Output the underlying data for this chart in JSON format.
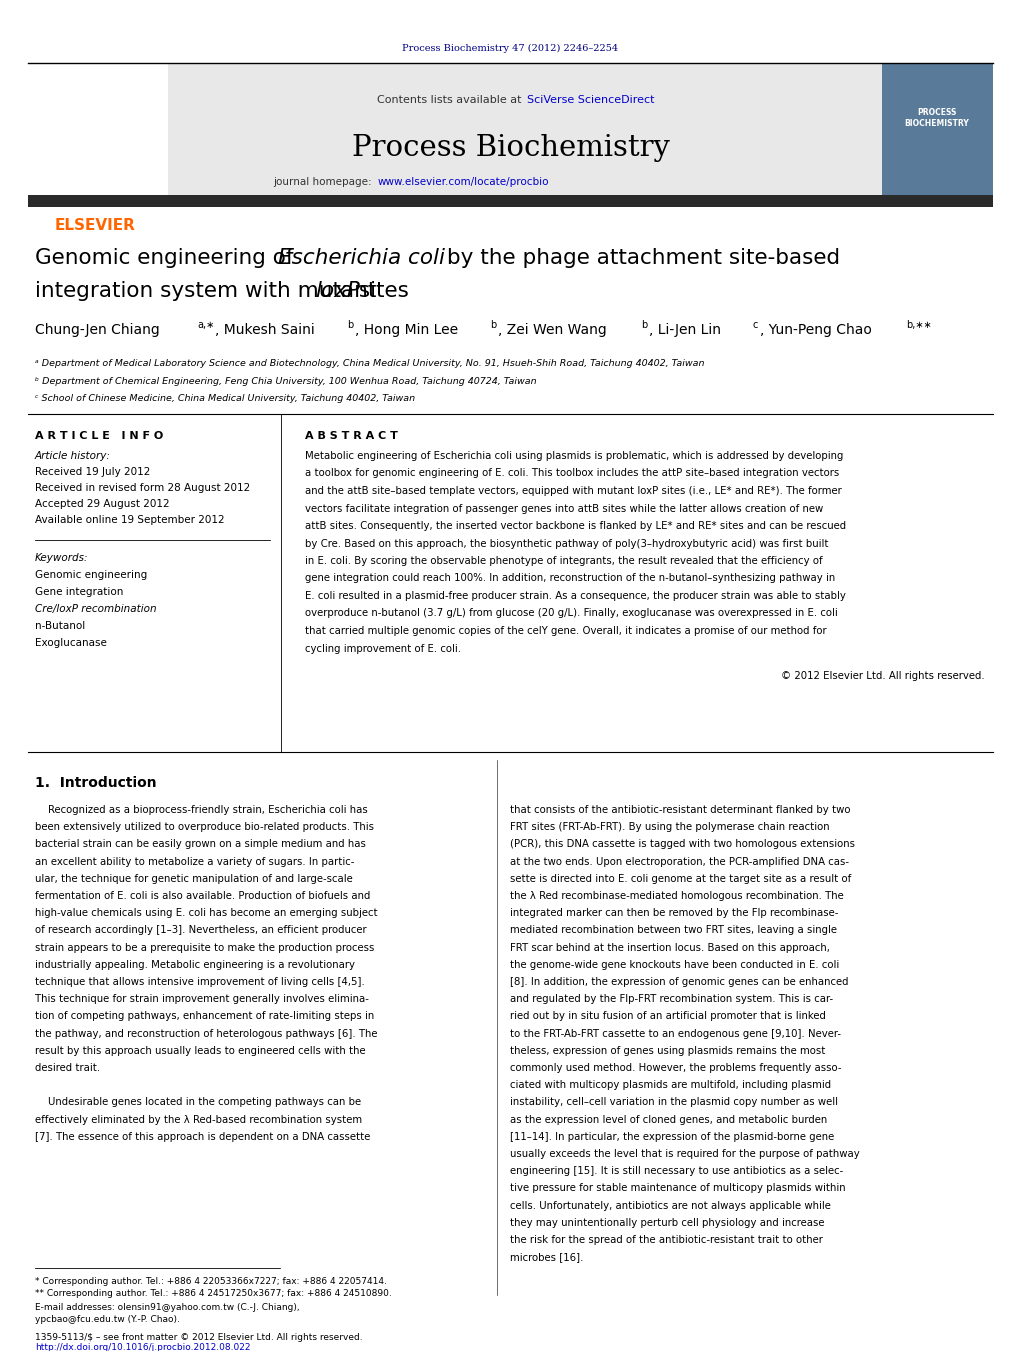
{
  "page_width": 10.21,
  "page_height": 13.51,
  "bg_color": "#ffffff",
  "top_journal_ref": "Process Biochemistry 47 (2012) 2246–2254",
  "top_journal_ref_color": "#000080",
  "header_bg": "#e8e8e8",
  "header_sciverse_color": "#0000cc",
  "journal_title": "Process Biochemistry",
  "journal_homepage_url_color": "#0000cc",
  "dark_bar_color": "#2a2a2a",
  "elsevier_text": "ELSEVIER",
  "elsevier_color": "#ff6600",
  "article_info_title": "A R T I C L E   I N F O",
  "abstract_title": "A B S T R A C T",
  "article_history_label": "Article history:",
  "received": "Received 19 July 2012",
  "revised": "Received in revised form 28 August 2012",
  "accepted": "Accepted 29 August 2012",
  "available": "Available online 19 September 2012",
  "keywords_label": "Keywords:",
  "kw1": "Genomic engineering",
  "kw2": "Gene integration",
  "kw3": "Cre/loxP recombination",
  "kw4": "n-Butanol",
  "kw5": "Exoglucanase",
  "copyright": "© 2012 Elsevier Ltd. All rights reserved.",
  "section1_title": "1.  Introduction",
  "affil_a": "ᵃ Department of Medical Laboratory Science and Biotechnology, China Medical University, No. 91, Hsueh-Shih Road, Taichung 40402, Taiwan",
  "affil_b": "ᵇ Department of Chemical Engineering, Feng Chia University, 100 Wenhua Road, Taichung 40724, Taiwan",
  "affil_c": "ᶜ School of Chinese Medicine, China Medical University, Taichung 40402, Taiwan",
  "footnote1": "* Corresponding author. Tel.: +886 4 22053366x7227; fax: +886 4 22057414.",
  "footnote2": "** Corresponding author. Tel.: +886 4 24517250x3677; fax: +886 4 24510890.",
  "footnote3": "E-mail addresses: olensin91@yahoo.com.tw (C.-J. Chiang),",
  "footnote4": "ypcbao@fcu.edu.tw (Y.-P. Chao).",
  "issn_line": "1359-5113/$ – see front matter © 2012 Elsevier Ltd. All rights reserved.",
  "doi_line": "http://dx.doi.org/10.1016/j.procbio.2012.08.022",
  "abstract_lines": [
    "Metabolic engineering of Escherichia coli using plasmids is problematic, which is addressed by developing",
    "a toolbox for genomic engineering of E. coli. This toolbox includes the attP site–based integration vectors",
    "and the attB site–based template vectors, equipped with mutant loxP sites (i.e., LE* and RE*). The former",
    "vectors facilitate integration of passenger genes into attB sites while the latter allows creation of new",
    "attB sites. Consequently, the inserted vector backbone is flanked by LE* and RE* sites and can be rescued",
    "by Cre. Based on this approach, the biosynthetic pathway of poly(3–hydroxybutyric acid) was first built",
    "in E. coli. By scoring the observable phenotype of integrants, the result revealed that the efficiency of",
    "gene integration could reach 100%. In addition, reconstruction of the n-butanol–synthesizing pathway in",
    "E. coli resulted in a plasmid-free producer strain. As a consequence, the producer strain was able to stably",
    "overproduce n-butanol (3.7 g/L) from glucose (20 g/L). Finally, exoglucanase was overexpressed in E. coli",
    "that carried multiple genomic copies of the celY gene. Overall, it indicates a promise of our method for",
    "cycling improvement of E. coli."
  ],
  "left_intro_lines": [
    "    Recognized as a bioprocess-friendly strain, Escherichia coli has",
    "been extensively utilized to overproduce bio-related products. This",
    "bacterial strain can be easily grown on a simple medium and has",
    "an excellent ability to metabolize a variety of sugars. In partic-",
    "ular, the technique for genetic manipulation of and large-scale",
    "fermentation of E. coli is also available. Production of biofuels and",
    "high-value chemicals using E. coli has become an emerging subject",
    "of research accordingly [1–3]. Nevertheless, an efficient producer",
    "strain appears to be a prerequisite to make the production process",
    "industrially appealing. Metabolic engineering is a revolutionary",
    "technique that allows intensive improvement of living cells [4,5].",
    "This technique for strain improvement generally involves elimina-",
    "tion of competing pathways, enhancement of rate-limiting steps in",
    "the pathway, and reconstruction of heterologous pathways [6]. The",
    "result by this approach usually leads to engineered cells with the",
    "desired trait.",
    "",
    "    Undesirable genes located in the competing pathways can be",
    "effectively eliminated by the λ Red-based recombination system",
    "[7]. The essence of this approach is dependent on a DNA cassette"
  ],
  "right_intro_lines": [
    "that consists of the antibiotic-resistant determinant flanked by two",
    "FRT sites (FRT-Ab-FRT). By using the polymerase chain reaction",
    "(PCR), this DNA cassette is tagged with two homologous extensions",
    "at the two ends. Upon electroporation, the PCR-amplified DNA cas-",
    "sette is directed into E. coli genome at the target site as a result of",
    "the λ Red recombinase-mediated homologous recombination. The",
    "integrated marker can then be removed by the Flp recombinase-",
    "mediated recombination between two FRT sites, leaving a single",
    "FRT scar behind at the insertion locus. Based on this approach,",
    "the genome-wide gene knockouts have been conducted in E. coli",
    "[8]. In addition, the expression of genomic genes can be enhanced",
    "and regulated by the Flp-FRT recombination system. This is car-",
    "ried out by in situ fusion of an artificial promoter that is linked",
    "to the FRT-Ab-FRT cassette to an endogenous gene [9,10]. Never-",
    "theless, expression of genes using plasmids remains the most",
    "commonly used method. However, the problems frequently asso-",
    "ciated with multicopy plasmids are multifold, including plasmid",
    "instability, cell–cell variation in the plasmid copy number as well",
    "as the expression level of cloned genes, and metabolic burden",
    "[11–14]. In particular, the expression of the plasmid-borne gene",
    "usually exceeds the level that is required for the purpose of pathway",
    "engineering [15]. It is still necessary to use antibiotics as a selec-",
    "tive pressure for stable maintenance of multicopy plasmids within",
    "cells. Unfortunately, antibiotics are not always applicable while",
    "they may unintentionally perturb cell physiology and increase",
    "the risk for the spread of the antibiotic-resistant trait to other",
    "microbes [16]."
  ]
}
